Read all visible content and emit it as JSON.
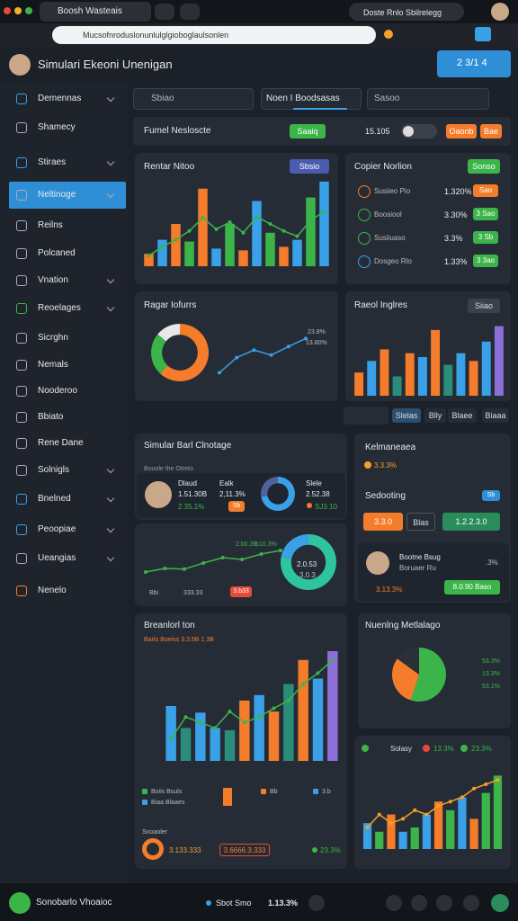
{
  "browser": {
    "tab": "Boosh Wasteais",
    "address": "Mucsofnroduslonunlulglgioboglaulsonlen",
    "profile": "Doste Rnlo Sbilrelegg"
  },
  "header": {
    "title": "Simulari Ekeoni Unenigan",
    "button": "2 3/1 4"
  },
  "sidebar": [
    "Demennas",
    "Shamecy",
    "Stiraes",
    "Neltinoge",
    "Reilns",
    "Polcaned",
    "Vnation",
    "Reoelages",
    "Sicrghn",
    "Nemals",
    "Nooderoo",
    "Bbiato",
    "Rene Dane",
    "Solnigls",
    "Bnelned",
    "Peoopiae",
    "Ueangias",
    "Nenelo"
  ],
  "toolbar": {
    "search": "Sbiao",
    "tab": "Noen I Boodsasas",
    "search2": "Sasoo"
  },
  "filter": {
    "title": "Fumel Nesloscte",
    "badge": "Saaiq",
    "count": "15.105",
    "buttons": [
      "Oaonb",
      "Bae"
    ]
  },
  "revenue": {
    "title": "Rentar Nitoo",
    "badge": "Sbsio"
  },
  "copier": {
    "title": "Copier Norlion",
    "badge": "Sonso",
    "rows": [
      {
        "label": "Susiieo Pio",
        "value": "1.320%",
        "badge": "Sao"
      },
      {
        "label": "Boosiool",
        "value": "3.30%",
        "badge": "3 Sao"
      },
      {
        "label": "Susiiuaso",
        "value": "3.3%",
        "badge": "3 Sb"
      },
      {
        "label": "Dosgeo Rlo",
        "value": "1.33%",
        "badge": "3 3ao"
      }
    ]
  },
  "ragar": {
    "title": "Ragar Iofurrs",
    "labels": [
      "23.8%",
      "13.80%"
    ]
  },
  "raeol": {
    "title": "Raeol Inglres",
    "badge": "Siiao"
  },
  "tabs": [
    "Slelas",
    "Blly",
    "Blaee",
    "Biaaa"
  ],
  "simular": {
    "title": "Simular Barl Clnotage",
    "subtitle": "Bouole Ihe Otreto",
    "cols": [
      [
        "Dlaud",
        "1.51.30B",
        "2.35.1%"
      ],
      [
        "Ealk",
        "2,11.3%",
        "Sb"
      ],
      [
        "Slele",
        "2.52.38",
        "SJ3.10"
      ]
    ]
  },
  "kelm": {
    "title": "Kelmaneaea",
    "value": "3.3.3%",
    "section": "Sedooting",
    "badge": "Sb",
    "buttons": [
      "3.3.0",
      "Blas",
      "1.2.2.3.0"
    ],
    "person": [
      "Bootne Bsug",
      "Boruaer Ru"
    ],
    "stat": "3.13.3%",
    "pct": ".3%",
    "action": "8.0.90 Baso"
  },
  "trend": {
    "labels": [
      "2.b0.3%",
      "2.10.3%"
    ],
    "center": [
      "2.0.53",
      "3.0.3"
    ],
    "foot": [
      "Bbi",
      "333.33",
      "3.b33"
    ]
  },
  "breakdown": {
    "title": "Breanlorl ton",
    "subtitle": "Barlo Boeiss 3.3.5B 1.3B",
    "legend": [
      "Boiis Bsuls",
      "Biaa Blaaes",
      "Bb",
      "3.b"
    ],
    "note": "Snoaoler",
    "stats": [
      "3.133.333",
      "3.6666.3.333",
      "23.3%"
    ]
  },
  "pie": {
    "title": "Nuenlng Metlalago",
    "labels": [
      "53.3%",
      "13.3%",
      "53.1%"
    ]
  },
  "trend2": {
    "legend": [
      "Solasy",
      "13.3%",
      "23.3%"
    ]
  },
  "footer": {
    "name": "Sonobarlo Vhoaioc",
    "status": "Sbot Smo",
    "value": "1.13.3%"
  },
  "chart_data": [
    {
      "type": "bar",
      "values": [
        14,
        30,
        48,
        28,
        88,
        20,
        48,
        18,
        74,
        38,
        22,
        30,
        78,
        96
      ],
      "colors": [
        "#f57c2a",
        "#3aa0e8",
        "#f57c2a",
        "#3bb54a",
        "#f57c2a",
        "#3aa0e8",
        "#3bb54a",
        "#f57c2a",
        "#3aa0e8",
        "#3bb54a",
        "#f57c2a",
        "#3aa0e8",
        "#3bb54a",
        "#3aa0e8"
      ],
      "line": [
        12,
        22,
        30,
        40,
        55,
        42,
        50,
        38,
        56,
        48,
        40,
        34,
        52,
        62
      ],
      "line_color": "#3bb54a",
      "ylim": [
        0,
        100
      ]
    },
    {
      "type": "donut",
      "values": [
        62,
        24,
        14
      ],
      "colors": [
        "#f57c2a",
        "#3bb54a",
        "#e8e8e8"
      ]
    },
    {
      "type": "line",
      "values": [
        10,
        40,
        55,
        45,
        62,
        78
      ],
      "color": "#3aa0e8",
      "ylim": [
        0,
        100
      ]
    },
    {
      "type": "bar",
      "values": [
        30,
        45,
        60,
        25,
        55,
        50,
        85,
        40,
        55,
        45,
        70,
        90
      ],
      "colors": [
        "#f57c2a",
        "#3aa0e8",
        "#f57c2a",
        "#2a8c7a",
        "#f57c2a",
        "#3aa0e8",
        "#f57c2a",
        "#2a8c7a",
        "#3aa0e8",
        "#f57c2a",
        "#3aa0e8",
        "#8c6fd8"
      ],
      "ylim": [
        0,
        100
      ]
    },
    {
      "type": "donut",
      "values": [
        72,
        28
      ],
      "colors": [
        "#3aa0e8",
        "#5060a0"
      ]
    },
    {
      "type": "line",
      "values": [
        20,
        30,
        28,
        45,
        60,
        55,
        70,
        80
      ],
      "color": "#3bb54a",
      "ylim": [
        0,
        100
      ]
    },
    {
      "type": "donut",
      "values": [
        78,
        22
      ],
      "colors": [
        "#2ec4a0",
        "#3aa0e8"
      ]
    },
    {
      "type": "bar",
      "values": [
        50,
        30,
        44,
        30,
        28,
        55,
        60,
        45,
        70,
        92,
        75,
        100
      ],
      "colors": [
        "#3aa0e8",
        "#2a8c7a",
        "#3aa0e8",
        "#3aa0e8",
        "#2a8c7a",
        "#f57c2a",
        "#3aa0e8",
        "#f57c2a",
        "#2a8c7a",
        "#f57c2a",
        "#3aa0e8",
        "#8c6fd8"
      ],
      "line": [
        20,
        40,
        35,
        30,
        45,
        35,
        40,
        48,
        55,
        70,
        80,
        92
      ],
      "line_color": "#3bb54a",
      "ylim": [
        0,
        100
      ]
    },
    {
      "type": "pie",
      "values": [
        55,
        30,
        15
      ],
      "colors": [
        "#3bb54a",
        "#f57c2a",
        "#2a2f38"
      ]
    },
    {
      "type": "bar",
      "values": [
        30,
        20,
        40,
        20,
        25,
        40,
        55,
        45,
        60,
        35,
        65,
        85
      ],
      "colors": [
        "#3aa0e8",
        "#3bb54a",
        "#f57c2a",
        "#3aa0e8",
        "#3bb54a",
        "#3aa0e8",
        "#f57c2a",
        "#3bb54a",
        "#3aa0e8",
        "#f57c2a",
        "#3bb54a",
        "#3bb54a"
      ],
      "line": [
        25,
        40,
        30,
        35,
        45,
        40,
        50,
        55,
        60,
        70,
        75,
        80
      ],
      "line_color": "#f5a02a",
      "ylim": [
        0,
        100
      ]
    }
  ]
}
